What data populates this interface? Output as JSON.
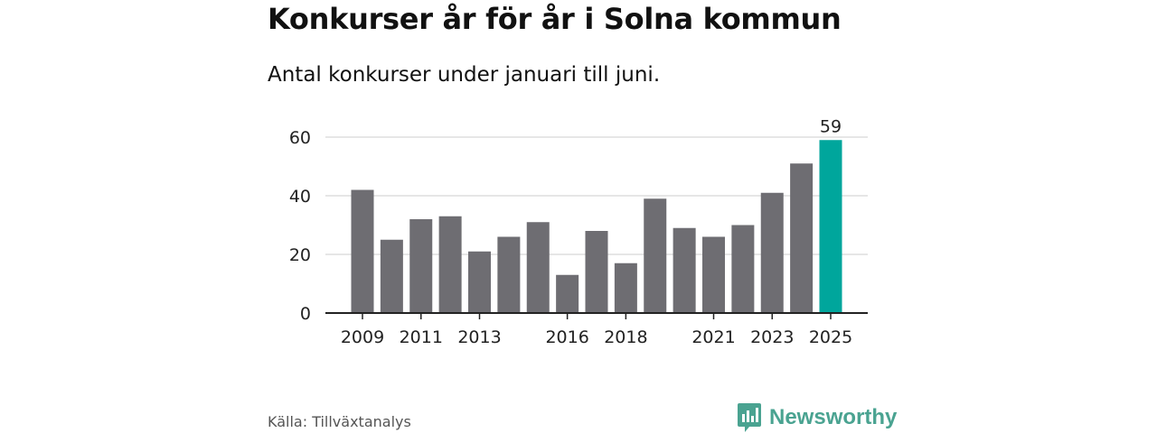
{
  "title": "Konkurser år för år i Solna kommun",
  "subtitle": "Antal konkurser under januari till juni.",
  "source": "Källa: Tillväxtanalys",
  "brand": {
    "name": "Newsworthy",
    "icon": "bar-chart-speech-bubble-icon",
    "color": "#4aa391"
  },
  "colors": {
    "bar": "#6e6d72",
    "highlight": "#00a69c",
    "grid": "#dddddd",
    "axis": "#222222"
  },
  "chart_data": {
    "type": "bar",
    "x": [
      2009,
      2010,
      2011,
      2012,
      2013,
      2014,
      2015,
      2016,
      2017,
      2018,
      2019,
      2020,
      2021,
      2022,
      2023,
      2024,
      2025
    ],
    "values": [
      42,
      25,
      32,
      33,
      21,
      26,
      31,
      13,
      28,
      17,
      39,
      29,
      26,
      30,
      41,
      51,
      59
    ],
    "xtick_labels": [
      "2009",
      "2011",
      "2013",
      "2016",
      "2018",
      "2021",
      "2023",
      "2025"
    ],
    "ylim": [
      0,
      60
    ],
    "yticks": [
      0,
      20,
      40,
      60
    ],
    "highlight": {
      "x": 2025,
      "label": "59"
    },
    "grid": true
  }
}
